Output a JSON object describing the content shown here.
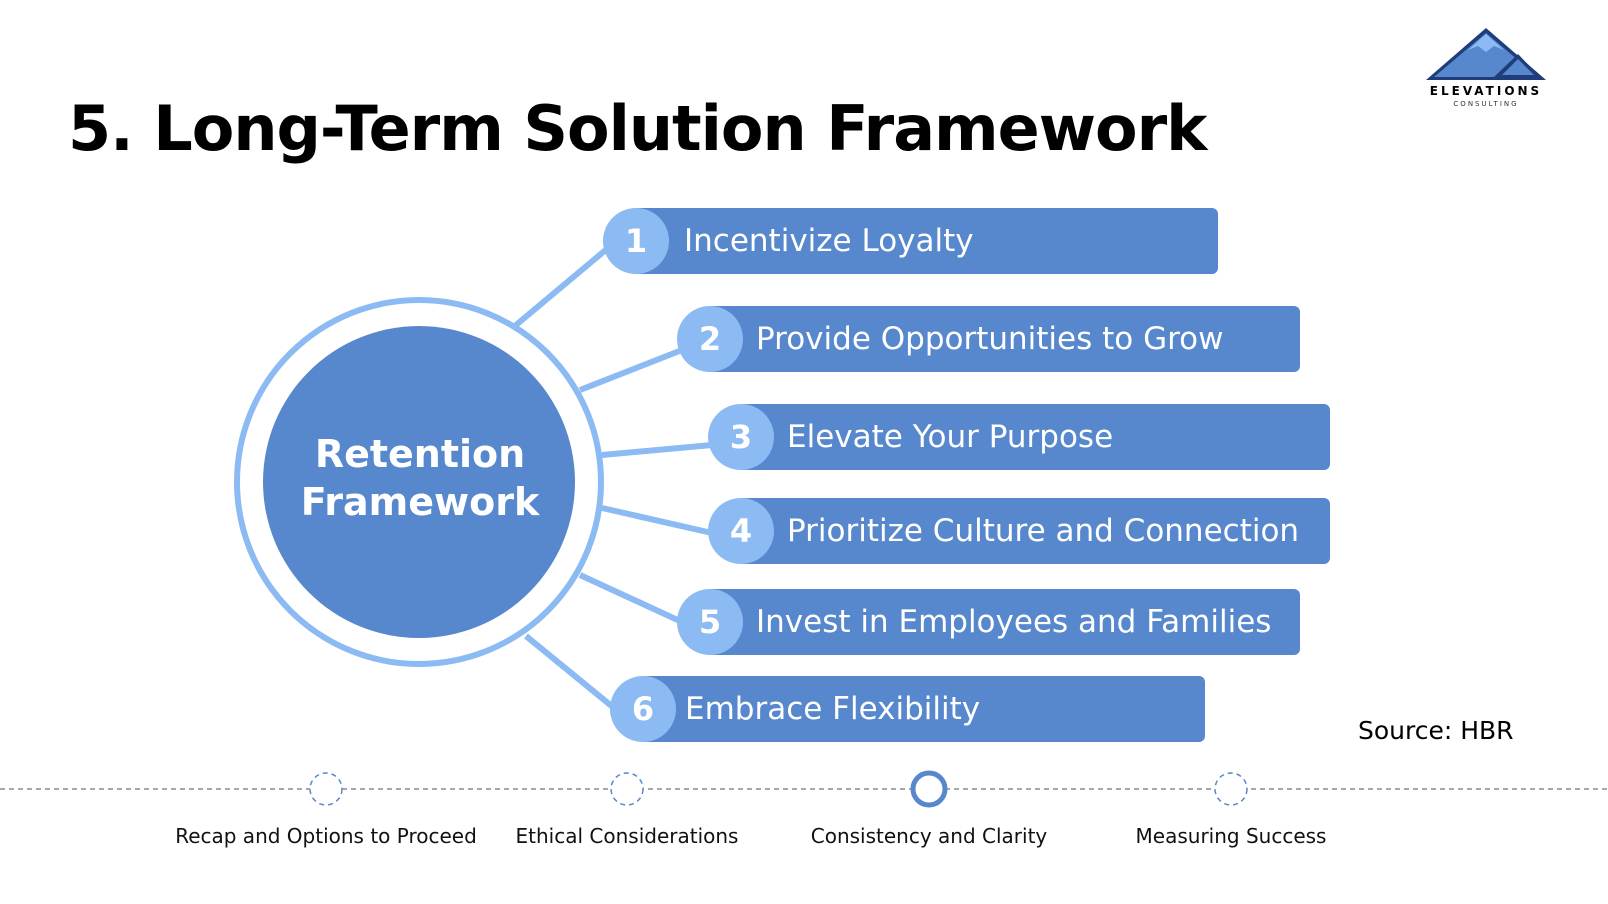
{
  "slide": {
    "title": "5. Long-Term Solution Framework",
    "source": "Source: HBR"
  },
  "logo": {
    "name": "ELEVATIONS",
    "subtitle": "CONSULTING",
    "icon": "mountain-icon",
    "colors": {
      "dark": "#1f3d7a",
      "mid": "#5787cd",
      "light": "#8cbaf3"
    }
  },
  "framework": {
    "center_label": "Retention Framework",
    "items": [
      {
        "number": "1",
        "label": "Incentivize Loyalty"
      },
      {
        "number": "2",
        "label": "Provide Opportunities to Grow"
      },
      {
        "number": "3",
        "label": "Elevate Your Purpose"
      },
      {
        "number": "4",
        "label": "Prioritize Culture and Connection"
      },
      {
        "number": "5",
        "label": "Invest in Employees and Families"
      },
      {
        "number": "6",
        "label": "Embrace Flexibility"
      }
    ]
  },
  "timeline": {
    "steps": [
      {
        "label": "Recap and Options to Proceed",
        "active": false
      },
      {
        "label": "Ethical Considerations",
        "active": false
      },
      {
        "label": "Consistency and Clarity",
        "active": true
      },
      {
        "label": "Measuring Success",
        "active": false
      }
    ]
  },
  "colors": {
    "bar": "#5787cd",
    "badge": "#8cbaf3",
    "connector": "#8cbaf3",
    "center": "#5787cd",
    "timeline_active": "#5787cd",
    "timeline_line": "#888888"
  }
}
